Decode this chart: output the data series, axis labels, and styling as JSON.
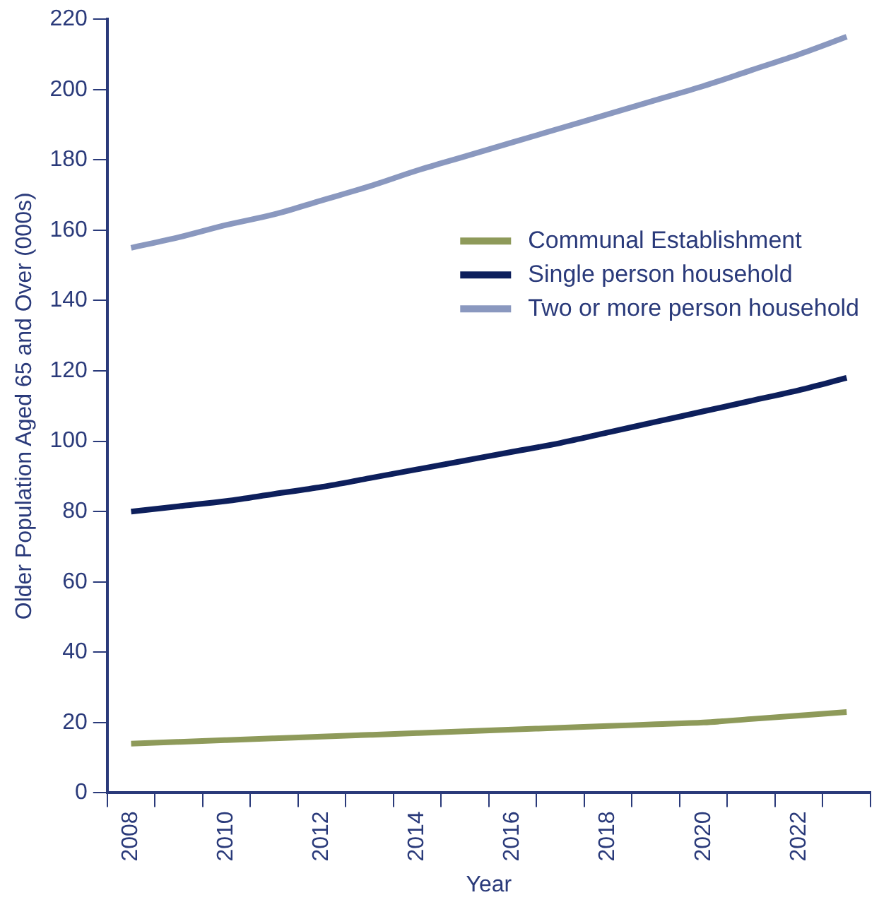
{
  "chart_data": {
    "type": "line",
    "xlabel": "Year",
    "ylabel": "Older Population Aged 65 and Over (000s)",
    "categories": [
      "2008",
      null,
      "2010",
      null,
      "2012",
      null,
      "2014",
      null,
      "2016",
      null,
      "2018",
      null,
      "2020",
      null,
      "2022",
      null
    ],
    "series": [
      {
        "name": "Communal Establishment",
        "color": "#8e9a5a",
        "values": [
          14,
          14.5,
          15,
          15.5,
          16,
          16.5,
          17,
          17.5,
          18,
          18.5,
          19,
          19.5,
          20,
          21,
          22,
          23
        ]
      },
      {
        "name": "Single person household",
        "color": "#0d1f5c",
        "values": [
          80,
          81.5,
          83,
          85,
          87,
          89.5,
          92,
          94.5,
          97,
          99.5,
          102.5,
          105.5,
          108.5,
          111.5,
          114.5,
          118
        ]
      },
      {
        "name": "Two or more person household",
        "color": "#8a98bf",
        "values": [
          155,
          158,
          161.5,
          164.5,
          168.5,
          172.5,
          177,
          181,
          185,
          189,
          193,
          197,
          201,
          205.5,
          210,
          215
        ]
      }
    ],
    "ylim": [
      0,
      220
    ],
    "yticks": [
      0,
      20,
      40,
      60,
      80,
      100,
      120,
      140,
      160,
      180,
      200,
      220
    ],
    "grid": false,
    "legend": "top right",
    "marker": "none",
    "line_style": "solid"
  }
}
